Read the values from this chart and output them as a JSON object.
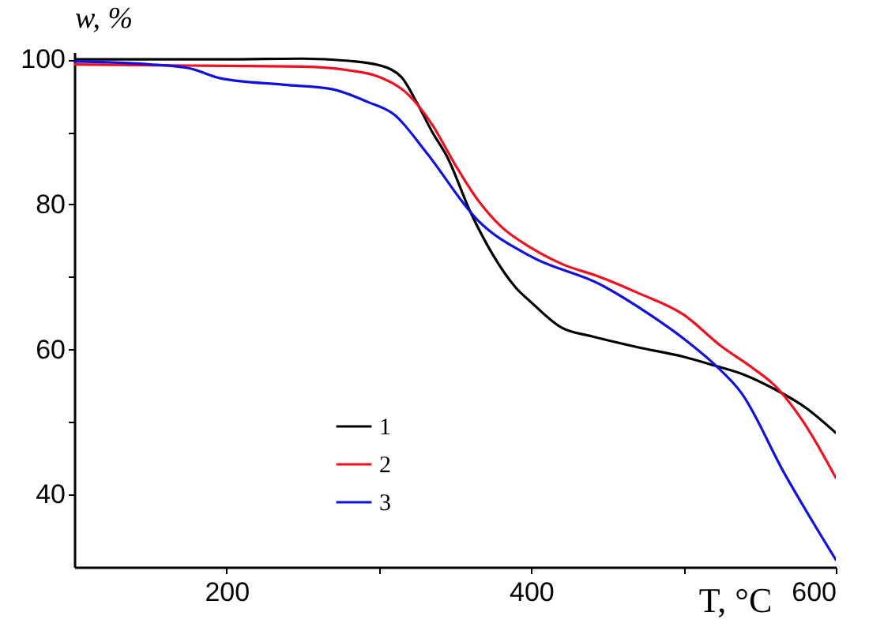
{
  "chart_data": {
    "type": "line",
    "xlabel": "T, °C",
    "ylabel": "w, %",
    "xlim": [
      100,
      600
    ],
    "ylim": [
      30,
      101
    ],
    "xticks": [
      200,
      {
        "value": 300,
        "label": null
      },
      400,
      {
        "value": 500,
        "label": null
      },
      600
    ],
    "yticks": [
      40,
      {
        "value": 50,
        "label": null
      },
      60,
      {
        "value": 70,
        "label": null
      },
      80,
      {
        "value": 90,
        "label": null
      },
      100
    ],
    "grid": false,
    "legend": "bottom left",
    "line_style": "solid",
    "series": [
      {
        "name": "1",
        "color": "#000000",
        "x": [
          100,
          150,
          200,
          250,
          280,
          300,
          315,
          325,
          335,
          345,
          360,
          375,
          390,
          400,
          420,
          440,
          470,
          500,
          520,
          540,
          560,
          580,
          600
        ],
        "values": [
          100,
          100,
          100,
          100.1,
          99.8,
          99.2,
          97.5,
          94,
          90,
          86.5,
          79,
          73,
          68.5,
          66.5,
          63,
          61.8,
          60.3,
          59,
          57.8,
          56.5,
          54.5,
          52,
          48.5
        ]
      },
      {
        "name": "2",
        "color": "#f01020",
        "x": [
          100,
          150,
          200,
          250,
          280,
          300,
          320,
          335,
          350,
          365,
          380,
          400,
          420,
          445,
          470,
          500,
          525,
          545,
          560,
          580,
          600
        ],
        "values": [
          99.3,
          99.2,
          99.1,
          99,
          98.5,
          97.6,
          95,
          91,
          85.5,
          80.6,
          77,
          74,
          71.8,
          70,
          67.8,
          64.8,
          60.4,
          57.5,
          55,
          49.6,
          42.3
        ]
      },
      {
        "name": "3",
        "color": "#1010e0",
        "x": [
          100,
          150,
          175,
          196,
          238,
          269,
          293,
          310,
          331,
          365,
          400,
          445,
          480,
          500,
          521,
          538,
          566,
          600
        ],
        "values": [
          99.7,
          99.3,
          98.8,
          97.4,
          96.5,
          95.9,
          94.1,
          92.4,
          87.2,
          77.8,
          72.8,
          69,
          64.5,
          61.5,
          57.8,
          54,
          43,
          31
        ]
      }
    ]
  }
}
